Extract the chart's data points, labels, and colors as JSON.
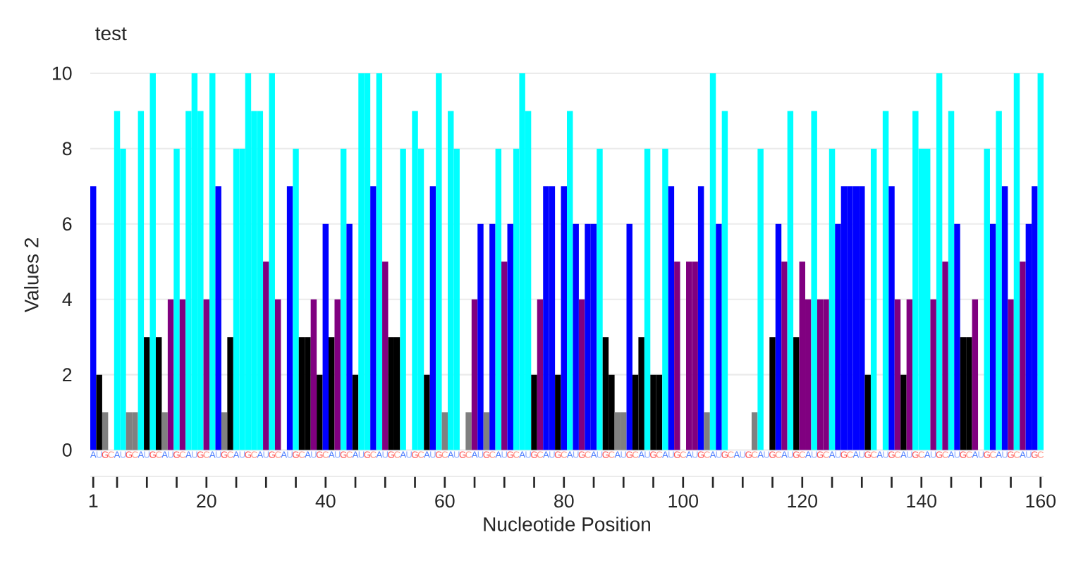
{
  "chart_data": {
    "type": "bar",
    "title": "test",
    "xlabel": "Nucleotide Position",
    "ylabel": "Values 2",
    "x": [
      1,
      2,
      3,
      4,
      5,
      6,
      7,
      8,
      9,
      10,
      11,
      12,
      13,
      14,
      15,
      16,
      17,
      18,
      19,
      20,
      21,
      22,
      23,
      24,
      25,
      26,
      27,
      28,
      29,
      30,
      31,
      32,
      33,
      34,
      35,
      36,
      37,
      38,
      39,
      40,
      41,
      42,
      43,
      44,
      45,
      46,
      47,
      48,
      49,
      50,
      51,
      52,
      53,
      54,
      55,
      56,
      57,
      58,
      59,
      60,
      61,
      62,
      63,
      64,
      65,
      66,
      67,
      68,
      69,
      70,
      71,
      72,
      73,
      74,
      75,
      76,
      77,
      78,
      79,
      80,
      81,
      82,
      83,
      84,
      85,
      86,
      87,
      88,
      89,
      90,
      91,
      92,
      93,
      94,
      95,
      96,
      97,
      98,
      99,
      100,
      101,
      102,
      103,
      104,
      105,
      106,
      107,
      108,
      109,
      110,
      111,
      112,
      113,
      114,
      115,
      116,
      117,
      118,
      119,
      120,
      121,
      122,
      123,
      124,
      125,
      126,
      127,
      128,
      129,
      130,
      131,
      132,
      133,
      134,
      135,
      136,
      137,
      138,
      139,
      140,
      141,
      142,
      143,
      144,
      145,
      146,
      147,
      148,
      149,
      150,
      151,
      152,
      153,
      154,
      155,
      156,
      157,
      158,
      159,
      160
    ],
    "values": [
      7,
      2,
      1,
      0,
      9,
      8,
      1,
      1,
      9,
      3,
      10,
      3,
      1,
      4,
      8,
      4,
      9,
      10,
      9,
      4,
      10,
      7,
      1,
      3,
      8,
      8,
      10,
      9,
      9,
      5,
      10,
      4,
      0,
      7,
      8,
      3,
      3,
      4,
      2,
      6,
      3,
      4,
      8,
      6,
      2,
      10,
      10,
      7,
      10,
      5,
      3,
      3,
      8,
      0,
      9,
      8,
      2,
      7,
      10,
      1,
      9,
      8,
      0,
      1,
      4,
      6,
      1,
      6,
      8,
      5,
      6,
      8,
      10,
      9,
      2,
      4,
      7,
      7,
      2,
      7,
      9,
      6,
      4,
      6,
      6,
      8,
      3,
      2,
      1,
      1,
      6,
      2,
      3,
      8,
      2,
      2,
      8,
      7,
      5,
      0,
      5,
      5,
      7,
      1,
      10,
      6,
      9,
      0,
      0,
      0,
      0,
      1,
      8,
      0,
      3,
      6,
      5,
      9,
      3,
      5,
      4,
      9,
      4,
      4,
      8,
      6,
      7,
      7,
      7,
      7,
      2,
      8,
      0,
      9,
      7,
      4,
      2,
      4,
      9,
      8,
      8,
      4,
      10,
      5,
      9,
      6,
      3,
      3,
      4,
      0,
      8,
      6,
      9,
      7,
      4,
      10,
      5,
      6,
      7,
      10
    ],
    "colors": [
      "#0000ff",
      "#000000",
      "#808080",
      null,
      "#00ffff",
      "#00ffff",
      "#808080",
      "#808080",
      "#00ffff",
      "#000000",
      "#00ffff",
      "#000000",
      "#808080",
      "#800080",
      "#00ffff",
      "#800080",
      "#00ffff",
      "#00ffff",
      "#00ffff",
      "#800080",
      "#00ffff",
      "#0000ff",
      "#808080",
      "#000000",
      "#00ffff",
      "#00ffff",
      "#00ffff",
      "#00ffff",
      "#00ffff",
      "#800080",
      "#00ffff",
      "#800080",
      null,
      "#0000ff",
      "#00ffff",
      "#000000",
      "#000000",
      "#800080",
      "#000000",
      "#0000ff",
      "#000000",
      "#800080",
      "#00ffff",
      "#0000ff",
      "#000000",
      "#00ffff",
      "#00ffff",
      "#0000ff",
      "#00ffff",
      "#800080",
      "#000000",
      "#000000",
      "#00ffff",
      null,
      "#00ffff",
      "#00ffff",
      "#000000",
      "#0000ff",
      "#00ffff",
      "#808080",
      "#00ffff",
      "#00ffff",
      null,
      "#808080",
      "#800080",
      "#0000ff",
      "#808080",
      "#0000ff",
      "#00ffff",
      "#800080",
      "#0000ff",
      "#00ffff",
      "#00ffff",
      "#00ffff",
      "#000000",
      "#800080",
      "#0000ff",
      "#0000ff",
      "#000000",
      "#0000ff",
      "#00ffff",
      "#0000ff",
      "#800080",
      "#0000ff",
      "#0000ff",
      "#00ffff",
      "#000000",
      "#000000",
      "#808080",
      "#808080",
      "#0000ff",
      "#000000",
      "#000000",
      "#00ffff",
      "#000000",
      "#000000",
      "#00ffff",
      "#0000ff",
      "#800080",
      null,
      "#800080",
      "#800080",
      "#0000ff",
      "#808080",
      "#00ffff",
      "#0000ff",
      "#00ffff",
      null,
      null,
      null,
      null,
      "#808080",
      "#00ffff",
      null,
      "#000000",
      "#0000ff",
      "#800080",
      "#00ffff",
      "#000000",
      "#800080",
      "#800080",
      "#00ffff",
      "#800080",
      "#800080",
      "#00ffff",
      "#0000ff",
      "#0000ff",
      "#0000ff",
      "#0000ff",
      "#0000ff",
      "#000000",
      "#00ffff",
      null,
      "#00ffff",
      "#0000ff",
      "#800080",
      "#000000",
      "#800080",
      "#00ffff",
      "#00ffff",
      "#00ffff",
      "#800080",
      "#00ffff",
      "#800080",
      "#00ffff",
      "#0000ff",
      "#000000",
      "#000000",
      "#800080",
      null,
      "#00ffff",
      "#0000ff",
      "#00ffff",
      "#0000ff",
      "#800080",
      "#00ffff",
      "#800080",
      "#0000ff",
      "#0000ff",
      "#00ffff"
    ],
    "xlim": [
      0.5,
      160.5
    ],
    "ylim": [
      -0.7,
      10
    ],
    "xticks": [
      1,
      {
        "value": 5,
        "label": null
      },
      {
        "value": 10,
        "label": null
      },
      {
        "value": 15,
        "label": null
      },
      20,
      {
        "value": 25,
        "label": null
      },
      {
        "value": 30,
        "label": null
      },
      {
        "value": 35,
        "label": null
      },
      40,
      {
        "value": 45,
        "label": null
      },
      {
        "value": 50,
        "label": null
      },
      {
        "value": 55,
        "label": null
      },
      60,
      {
        "value": 65,
        "label": null
      },
      {
        "value": 70,
        "label": null
      },
      {
        "value": 75,
        "label": null
      },
      80,
      {
        "value": 85,
        "label": null
      },
      {
        "value": 90,
        "label": null
      },
      {
        "value": 95,
        "label": null
      },
      100,
      {
        "value": 105,
        "label": null
      },
      {
        "value": 110,
        "label": null
      },
      {
        "value": 115,
        "label": null
      },
      120,
      {
        "value": 125,
        "label": null
      },
      {
        "value": 130,
        "label": null
      },
      {
        "value": 135,
        "label": null
      },
      140,
      {
        "value": 145,
        "label": null
      },
      {
        "value": 150,
        "label": null
      },
      {
        "value": 155,
        "label": null
      },
      160
    ],
    "yticks": [
      0,
      2,
      4,
      6,
      8,
      10
    ],
    "grid": "y",
    "annotations": [
      {
        "text": "A",
        "x": 1,
        "y": 0
      },
      {
        "text": "U",
        "x": 2,
        "y": 0
      },
      {
        "text": "G",
        "x": 3,
        "y": 0
      },
      {
        "text": "C",
        "x": 4,
        "y": 0
      },
      {
        "text": "A",
        "x": 5,
        "y": 0
      },
      {
        "text": "U",
        "x": 6,
        "y": 0
      },
      {
        "text": "G",
        "x": 7,
        "y": 0
      },
      {
        "text": "C",
        "x": 8,
        "y": 0
      },
      {
        "text": "A",
        "x": 9,
        "y": 0
      },
      {
        "text": "U",
        "x": 10,
        "y": 0
      },
      {
        "text": "G",
        "x": 11,
        "y": 0
      },
      {
        "text": "C",
        "x": 12,
        "y": 0
      },
      {
        "text": "A",
        "x": 13,
        "y": 0
      },
      {
        "text": "U",
        "x": 14,
        "y": 0
      },
      {
        "text": "G",
        "x": 15,
        "y": 0
      },
      {
        "text": "C",
        "x": 16,
        "y": 0
      },
      {
        "text": "A",
        "x": 17,
        "y": 0
      },
      {
        "text": "U",
        "x": 18,
        "y": 0
      },
      {
        "text": "G",
        "x": 19,
        "y": 0
      },
      {
        "text": "C",
        "x": 20,
        "y": 0
      },
      {
        "text": "A",
        "x": 21,
        "y": 0
      },
      {
        "text": "U",
        "x": 22,
        "y": 0
      },
      {
        "text": "G",
        "x": 23,
        "y": 0
      },
      {
        "text": "C",
        "x": 24,
        "y": 0
      },
      {
        "text": "A",
        "x": 25,
        "y": 0
      },
      {
        "text": "U",
        "x": 26,
        "y": 0
      },
      {
        "text": "G",
        "x": 27,
        "y": 0
      },
      {
        "text": "C",
        "x": 28,
        "y": 0
      },
      {
        "text": "A",
        "x": 29,
        "y": 0
      },
      {
        "text": "U",
        "x": 30,
        "y": 0
      },
      {
        "text": "G",
        "x": 31,
        "y": 0
      },
      {
        "text": "C",
        "x": 32,
        "y": 0
      },
      {
        "text": "A",
        "x": 33,
        "y": 0
      },
      {
        "text": "U",
        "x": 34,
        "y": 0
      },
      {
        "text": "G",
        "x": 35,
        "y": 0
      },
      {
        "text": "C",
        "x": 36,
        "y": 0
      },
      {
        "text": "A",
        "x": 37,
        "y": 0
      },
      {
        "text": "U",
        "x": 38,
        "y": 0
      },
      {
        "text": "G",
        "x": 39,
        "y": 0
      },
      {
        "text": "C",
        "x": 40,
        "y": 0
      },
      {
        "text": "A",
        "x": 41,
        "y": 0
      },
      {
        "text": "U",
        "x": 42,
        "y": 0
      },
      {
        "text": "G",
        "x": 43,
        "y": 0
      },
      {
        "text": "C",
        "x": 44,
        "y": 0
      },
      {
        "text": "A",
        "x": 45,
        "y": 0
      },
      {
        "text": "U",
        "x": 46,
        "y": 0
      },
      {
        "text": "G",
        "x": 47,
        "y": 0
      },
      {
        "text": "C",
        "x": 48,
        "y": 0
      },
      {
        "text": "A",
        "x": 49,
        "y": 0
      },
      {
        "text": "U",
        "x": 50,
        "y": 0
      },
      {
        "text": "G",
        "x": 51,
        "y": 0
      },
      {
        "text": "C",
        "x": 52,
        "y": 0
      },
      {
        "text": "A",
        "x": 53,
        "y": 0
      },
      {
        "text": "U",
        "x": 54,
        "y": 0
      },
      {
        "text": "G",
        "x": 55,
        "y": 0
      },
      {
        "text": "C",
        "x": 56,
        "y": 0
      },
      {
        "text": "A",
        "x": 57,
        "y": 0
      },
      {
        "text": "U",
        "x": 58,
        "y": 0
      },
      {
        "text": "G",
        "x": 59,
        "y": 0
      },
      {
        "text": "C",
        "x": 60,
        "y": 0
      },
      {
        "text": "A",
        "x": 61,
        "y": 0
      },
      {
        "text": "U",
        "x": 62,
        "y": 0
      },
      {
        "text": "G",
        "x": 63,
        "y": 0
      },
      {
        "text": "C",
        "x": 64,
        "y": 0
      },
      {
        "text": "A",
        "x": 65,
        "y": 0
      },
      {
        "text": "U",
        "x": 66,
        "y": 0
      },
      {
        "text": "G",
        "x": 67,
        "y": 0
      },
      {
        "text": "C",
        "x": 68,
        "y": 0
      },
      {
        "text": "A",
        "x": 69,
        "y": 0
      },
      {
        "text": "U",
        "x": 70,
        "y": 0
      },
      {
        "text": "G",
        "x": 71,
        "y": 0
      },
      {
        "text": "C",
        "x": 72,
        "y": 0
      },
      {
        "text": "A",
        "x": 73,
        "y": 0
      },
      {
        "text": "U",
        "x": 74,
        "y": 0
      },
      {
        "text": "G",
        "x": 75,
        "y": 0
      },
      {
        "text": "C",
        "x": 76,
        "y": 0
      },
      {
        "text": "A",
        "x": 77,
        "y": 0
      },
      {
        "text": "U",
        "x": 78,
        "y": 0
      },
      {
        "text": "G",
        "x": 79,
        "y": 0
      },
      {
        "text": "C",
        "x": 80,
        "y": 0
      },
      {
        "text": "A",
        "x": 81,
        "y": 0
      },
      {
        "text": "U",
        "x": 82,
        "y": 0
      },
      {
        "text": "G",
        "x": 83,
        "y": 0
      },
      {
        "text": "C",
        "x": 84,
        "y": 0
      },
      {
        "text": "A",
        "x": 85,
        "y": 0
      },
      {
        "text": "U",
        "x": 86,
        "y": 0
      },
      {
        "text": "G",
        "x": 87,
        "y": 0
      },
      {
        "text": "C",
        "x": 88,
        "y": 0
      },
      {
        "text": "A",
        "x": 89,
        "y": 0
      },
      {
        "text": "U",
        "x": 90,
        "y": 0
      },
      {
        "text": "G",
        "x": 91,
        "y": 0
      },
      {
        "text": "C",
        "x": 92,
        "y": 0
      },
      {
        "text": "A",
        "x": 93,
        "y": 0
      },
      {
        "text": "U",
        "x": 94,
        "y": 0
      },
      {
        "text": "G",
        "x": 95,
        "y": 0
      },
      {
        "text": "C",
        "x": 96,
        "y": 0
      },
      {
        "text": "A",
        "x": 97,
        "y": 0
      },
      {
        "text": "U",
        "x": 98,
        "y": 0
      },
      {
        "text": "G",
        "x": 99,
        "y": 0
      },
      {
        "text": "C",
        "x": 100,
        "y": 0
      },
      {
        "text": "A",
        "x": 101,
        "y": 0
      },
      {
        "text": "U",
        "x": 102,
        "y": 0
      },
      {
        "text": "G",
        "x": 103,
        "y": 0
      },
      {
        "text": "C",
        "x": 104,
        "y": 0
      },
      {
        "text": "A",
        "x": 105,
        "y": 0
      },
      {
        "text": "U",
        "x": 106,
        "y": 0
      },
      {
        "text": "G",
        "x": 107,
        "y": 0
      },
      {
        "text": "C",
        "x": 108,
        "y": 0
      },
      {
        "text": "A",
        "x": 109,
        "y": 0
      },
      {
        "text": "U",
        "x": 110,
        "y": 0
      },
      {
        "text": "G",
        "x": 111,
        "y": 0
      },
      {
        "text": "C",
        "x": 112,
        "y": 0
      },
      {
        "text": "A",
        "x": 113,
        "y": 0
      },
      {
        "text": "U",
        "x": 114,
        "y": 0
      },
      {
        "text": "G",
        "x": 115,
        "y": 0
      },
      {
        "text": "C",
        "x": 116,
        "y": 0
      },
      {
        "text": "A",
        "x": 117,
        "y": 0
      },
      {
        "text": "U",
        "x": 118,
        "y": 0
      },
      {
        "text": "G",
        "x": 119,
        "y": 0
      },
      {
        "text": "C",
        "x": 120,
        "y": 0
      },
      {
        "text": "A",
        "x": 121,
        "y": 0
      },
      {
        "text": "U",
        "x": 122,
        "y": 0
      },
      {
        "text": "G",
        "x": 123,
        "y": 0
      },
      {
        "text": "C",
        "x": 124,
        "y": 0
      },
      {
        "text": "A",
        "x": 125,
        "y": 0
      },
      {
        "text": "U",
        "x": 126,
        "y": 0
      },
      {
        "text": "G",
        "x": 127,
        "y": 0
      },
      {
        "text": "C",
        "x": 128,
        "y": 0
      },
      {
        "text": "A",
        "x": 129,
        "y": 0
      },
      {
        "text": "U",
        "x": 130,
        "y": 0
      },
      {
        "text": "G",
        "x": 131,
        "y": 0
      },
      {
        "text": "C",
        "x": 132,
        "y": 0
      },
      {
        "text": "A",
        "x": 133,
        "y": 0
      },
      {
        "text": "U",
        "x": 134,
        "y": 0
      },
      {
        "text": "G",
        "x": 135,
        "y": 0
      },
      {
        "text": "C",
        "x": 136,
        "y": 0
      },
      {
        "text": "A",
        "x": 137,
        "y": 0
      },
      {
        "text": "U",
        "x": 138,
        "y": 0
      },
      {
        "text": "G",
        "x": 139,
        "y": 0
      },
      {
        "text": "C",
        "x": 140,
        "y": 0
      },
      {
        "text": "A",
        "x": 141,
        "y": 0
      },
      {
        "text": "U",
        "x": 142,
        "y": 0
      },
      {
        "text": "G",
        "x": 143,
        "y": 0
      },
      {
        "text": "C",
        "x": 144,
        "y": 0
      },
      {
        "text": "A",
        "x": 145,
        "y": 0
      },
      {
        "text": "U",
        "x": 146,
        "y": 0
      },
      {
        "text": "G",
        "x": 147,
        "y": 0
      },
      {
        "text": "C",
        "x": 148,
        "y": 0
      },
      {
        "text": "A",
        "x": 149,
        "y": 0
      },
      {
        "text": "U",
        "x": 150,
        "y": 0
      },
      {
        "text": "G",
        "x": 151,
        "y": 0
      },
      {
        "text": "C",
        "x": 152,
        "y": 0
      },
      {
        "text": "A",
        "x": 153,
        "y": 0
      },
      {
        "text": "U",
        "x": 154,
        "y": 0
      },
      {
        "text": "G",
        "x": 155,
        "y": 0
      },
      {
        "text": "C",
        "x": 156,
        "y": 0
      },
      {
        "text": "A",
        "x": 157,
        "y": 0
      },
      {
        "text": "U",
        "x": 158,
        "y": 0
      },
      {
        "text": "G",
        "x": 159,
        "y": 0
      },
      {
        "text": "C",
        "x": 160,
        "y": 0
      }
    ]
  }
}
